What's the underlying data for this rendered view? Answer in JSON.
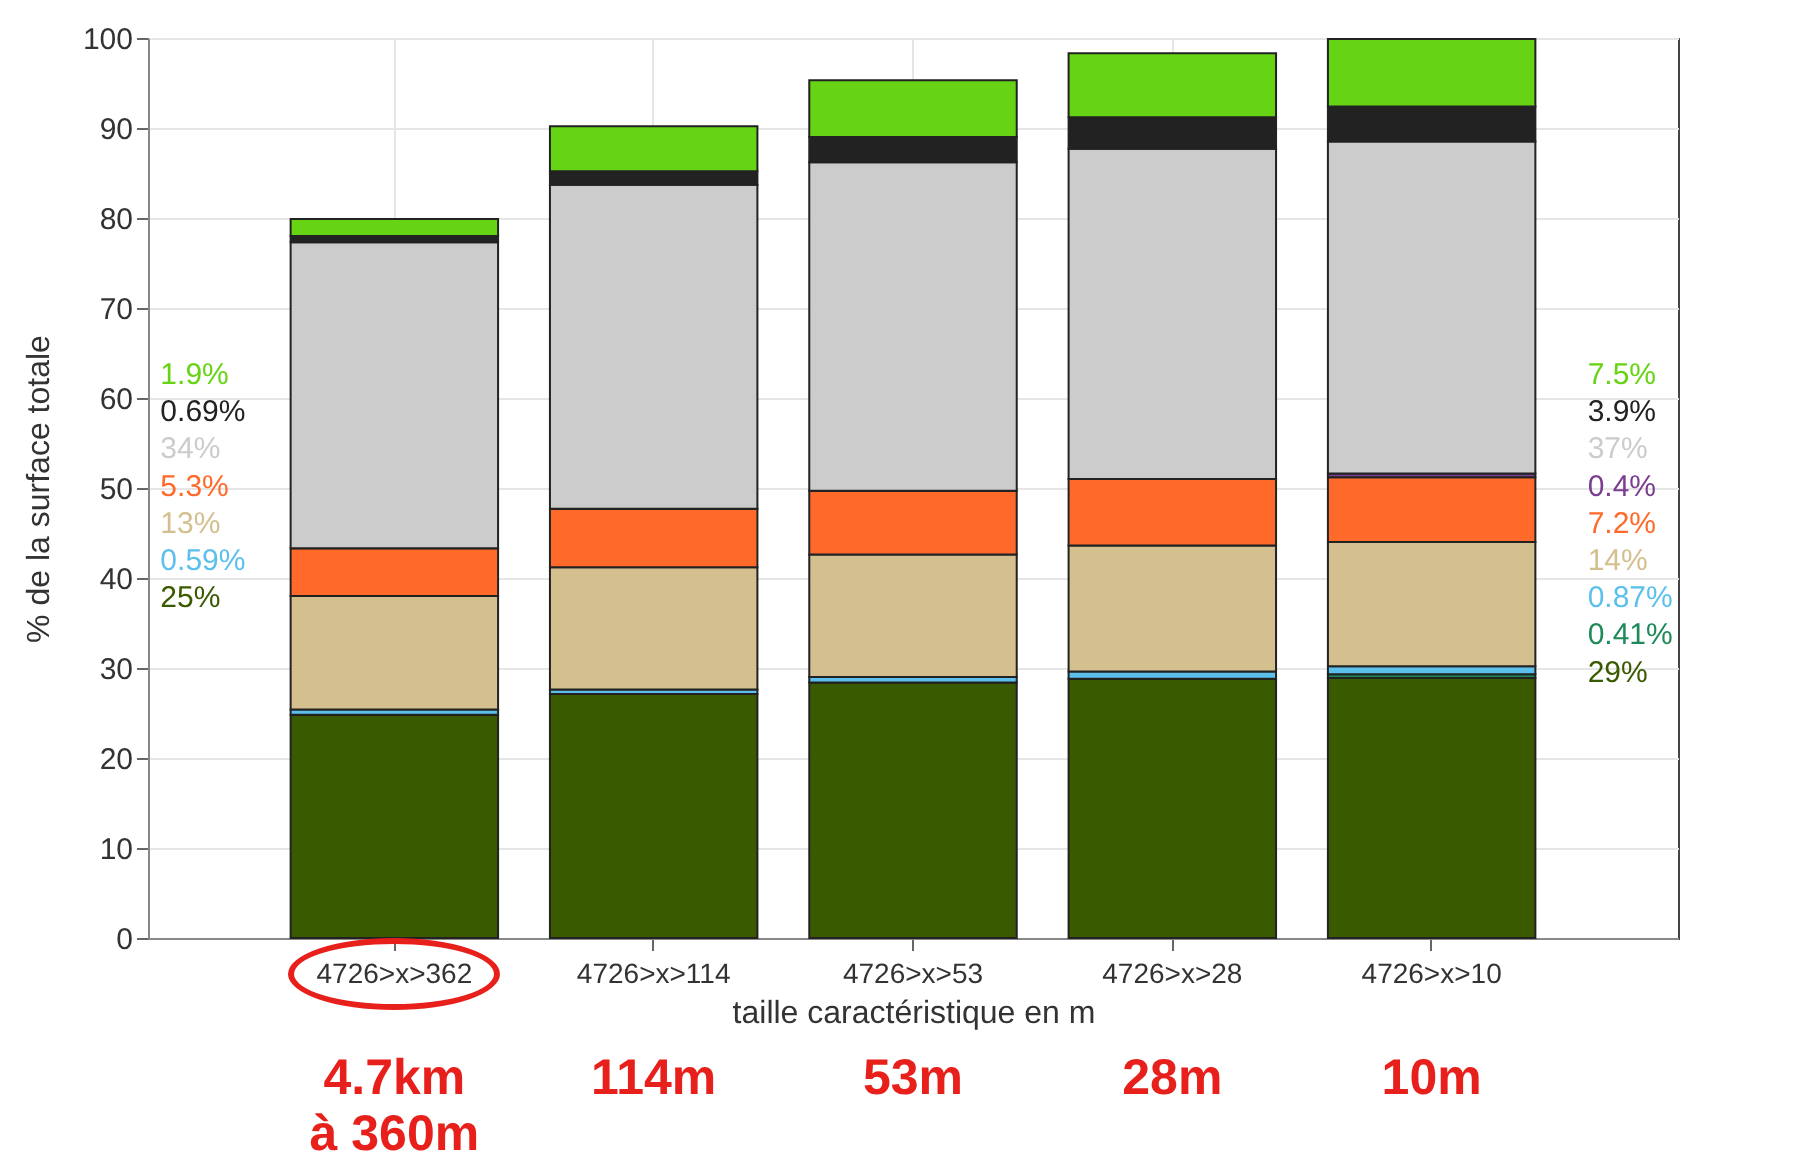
{
  "chart_data": {
    "type": "bar",
    "stacked": true,
    "categories": [
      "4726>x>362",
      "4726>x>114",
      "4726>x>53",
      "4726>x>28",
      "4726>x>10"
    ],
    "xlabel": "taille caractéristique en m",
    "ylabel": "% de la surface totale",
    "ylim": [
      0,
      100
    ],
    "yticks": [
      0,
      10,
      20,
      30,
      40,
      50,
      60,
      70,
      80,
      90,
      100
    ],
    "grid": true,
    "series": [
      {
        "color": "#3a5a00",
        "values": [
          24.8,
          27.1,
          28.4,
          28.8,
          28.9
        ]
      },
      {
        "color": "#1e8a5a",
        "values": [
          0,
          0,
          0,
          0,
          0.4
        ]
      },
      {
        "color": "#5bc0eb",
        "values": [
          0.6,
          0.5,
          0.6,
          0.8,
          0.9
        ]
      },
      {
        "color": "#d4bf8e",
        "values": [
          12.6,
          13.6,
          13.6,
          14,
          13.8
        ]
      },
      {
        "color": "#ff6a2b",
        "values": [
          5.3,
          6.5,
          7.1,
          7.4,
          7.2
        ]
      },
      {
        "color": "#7a3d8f",
        "values": [
          0,
          0,
          0,
          0,
          0.4
        ]
      },
      {
        "color": "#cccccc",
        "values": [
          34,
          36,
          36.5,
          36.7,
          36.9
        ]
      },
      {
        "color": "#222222",
        "values": [
          0.7,
          1.5,
          2.8,
          3.5,
          3.9
        ]
      },
      {
        "color": "#66d414",
        "values": [
          1.9,
          5,
          6.3,
          7.1,
          7.5
        ]
      }
    ],
    "annotations": [
      "1.9%\n0.69%\n34%\n5.3%\n13%\n0.59%\n25%",
      "7.5%\n3.9%\n37%\n0.4%\n7.2%\n14%\n0.87%\n0.41%\n29%",
      "4.7km\nà 360m",
      "114m",
      "53m",
      "28m",
      "10m"
    ]
  }
}
